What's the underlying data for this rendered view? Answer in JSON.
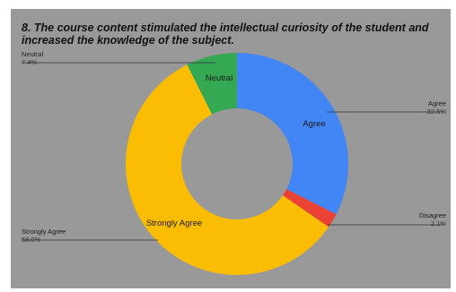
{
  "chart_data": {
    "type": "pie",
    "donut": true,
    "title_lines": [
      "8. The course content stimulated the intellectual curiosity of the student and",
      "increased the knowledge of the subject."
    ],
    "slices": [
      {
        "label": "Agree",
        "value": 32.5,
        "value_text": "32.5%",
        "color": "#4285f4"
      },
      {
        "label": "Disagree",
        "value": 2.1,
        "value_text": "2.1%",
        "color": "#ea4335"
      },
      {
        "label": "Strongly Agree",
        "value": 58.0,
        "value_text": "58.0%",
        "color": "#fbbc04"
      },
      {
        "label": "Neutral",
        "value": 7.4,
        "value_text": "7.4%",
        "color": "#34a853"
      }
    ],
    "background_color": "#999999",
    "legend": "callouts"
  }
}
